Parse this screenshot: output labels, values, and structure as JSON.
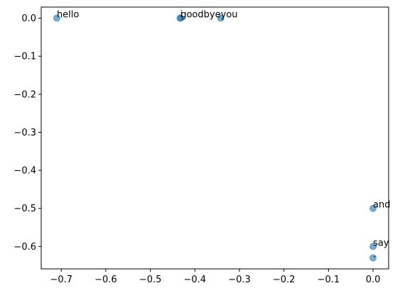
{
  "chart_data": {
    "type": "scatter",
    "title": "",
    "xlabel": "",
    "ylabel": "",
    "xlim": [
      -0.745,
      0.035
    ],
    "ylim": [
      -0.659,
      0.029
    ],
    "xticks": [
      -0.7,
      -0.6,
      -0.5,
      -0.4,
      -0.3,
      -0.2,
      -0.1,
      0.0
    ],
    "yticks": [
      0.0,
      -0.1,
      -0.2,
      -0.3,
      -0.4,
      -0.5,
      -0.6
    ],
    "xtick_labels": [
      "−0.7",
      "−0.6",
      "−0.5",
      "−0.4",
      "−0.3",
      "−0.2",
      "−0.1",
      "0.0"
    ],
    "ytick_labels": [
      "0.0",
      "−0.1",
      "−0.2",
      "−0.3",
      "−0.4",
      "−0.5",
      "−0.6"
    ],
    "grid": false,
    "marker_color": "#1f77b4",
    "marker_alpha": 0.6,
    "points": [
      {
        "x": -0.71,
        "y": 0.0,
        "label": "hello"
      },
      {
        "x": -0.433,
        "y": 0.0,
        "label": "i"
      },
      {
        "x": -0.432,
        "y": 0.0,
        "label": "goodbye"
      },
      {
        "x": -0.342,
        "y": 0.0,
        "label": "you"
      },
      {
        "x": 0.0,
        "y": -0.5,
        "label": "and"
      },
      {
        "x": 0.0,
        "y": -0.6,
        "label": "say"
      },
      {
        "x": 0.0,
        "y": -0.63,
        "label": "."
      }
    ]
  }
}
